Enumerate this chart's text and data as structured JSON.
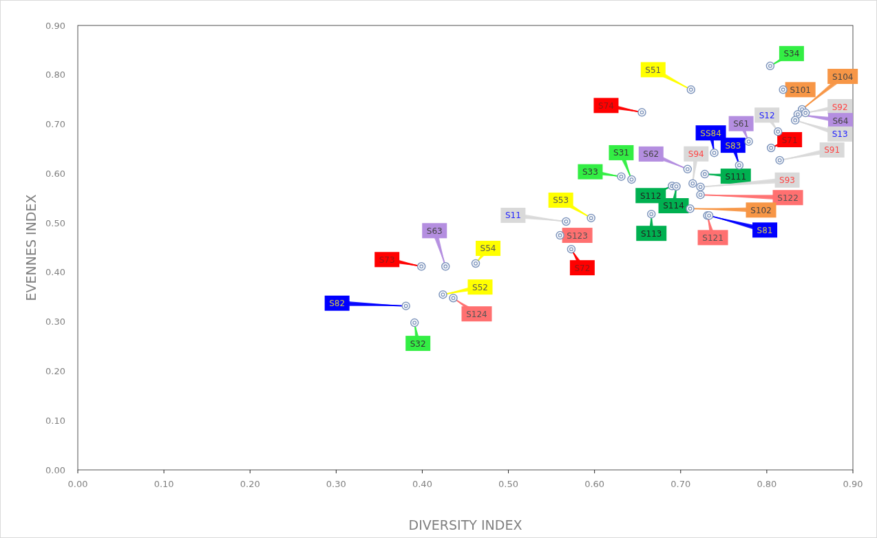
{
  "chart_data": {
    "type": "scatter",
    "xlabel": "DIVERSITY INDEX",
    "ylabel": "EVENNES INDEX",
    "marker": "circle",
    "grid": false,
    "xlim": [
      0,
      0.9
    ],
    "ylim": [
      0,
      0.9
    ],
    "xticks": [
      {
        "value": 0,
        "label": "0.00"
      },
      {
        "value": 0.1,
        "label": "0.10"
      },
      {
        "value": 0.2,
        "label": "0.20"
      },
      {
        "value": 0.3,
        "label": "0.30"
      },
      {
        "value": 0.4,
        "label": "0.40"
      },
      {
        "value": 0.5,
        "label": "0.50"
      },
      {
        "value": 0.6,
        "label": "0.60"
      },
      {
        "value": 0.7,
        "label": "0.70"
      },
      {
        "value": 0.8,
        "label": "0.80"
      },
      {
        "value": 0.9,
        "label": "0.90"
      }
    ],
    "yticks": [
      {
        "value": 0,
        "label": "0.00"
      },
      {
        "value": 0.1,
        "label": "0.10"
      },
      {
        "value": 0.2,
        "label": "0.20"
      },
      {
        "value": 0.3,
        "label": "0.30"
      },
      {
        "value": 0.4,
        "label": "0.40"
      },
      {
        "value": 0.5,
        "label": "0.50"
      },
      {
        "value": 0.6,
        "label": "0.60"
      },
      {
        "value": 0.7,
        "label": "0.70"
      },
      {
        "value": 0.8,
        "label": "0.80"
      },
      {
        "value": 0.9,
        "label": "0.90"
      }
    ],
    "series": [
      {
        "color": "#7f96bd",
        "x": [
          0.804,
          0.712,
          0.819,
          0.841,
          0.845,
          0.836,
          0.833,
          0.813,
          0.805,
          0.815,
          0.779,
          0.739,
          0.768,
          0.714,
          0.708,
          0.728,
          0.723,
          0.723,
          0.69,
          0.695,
          0.711,
          0.731,
          0.733,
          0.666,
          0.643,
          0.631,
          0.596,
          0.655,
          0.567,
          0.56,
          0.573,
          0.427,
          0.399,
          0.462,
          0.424,
          0.436,
          0.381,
          0.391
        ],
        "values": [
          0.818,
          0.77,
          0.77,
          0.73,
          0.723,
          0.72,
          0.708,
          0.685,
          0.652,
          0.627,
          0.665,
          0.642,
          0.617,
          0.58,
          0.609,
          0.599,
          0.573,
          0.557,
          0.575,
          0.574,
          0.529,
          0.515,
          0.515,
          0.518,
          0.588,
          0.594,
          0.51,
          0.724,
          0.503,
          0.475,
          0.447,
          0.412,
          0.412,
          0.418,
          0.355,
          0.348,
          0.332,
          0.298
        ]
      }
    ],
    "annotations": [
      {
        "text": "S34",
        "x": 0.804,
        "y": 0.818
      },
      {
        "text": "S51",
        "x": 0.712,
        "y": 0.77
      },
      {
        "text": "S101",
        "x": 0.819,
        "y": 0.77
      },
      {
        "text": "S104",
        "x": 0.841,
        "y": 0.73
      },
      {
        "text": "S92",
        "x": 0.845,
        "y": 0.723
      },
      {
        "text": "S64",
        "x": 0.836,
        "y": 0.72
      },
      {
        "text": "S13",
        "x": 0.833,
        "y": 0.708
      },
      {
        "text": "S12",
        "x": 0.813,
        "y": 0.685
      },
      {
        "text": "S71",
        "x": 0.805,
        "y": 0.652
      },
      {
        "text": "S91",
        "x": 0.815,
        "y": 0.627
      },
      {
        "text": "S61",
        "x": 0.779,
        "y": 0.665
      },
      {
        "text": "SS84",
        "x": 0.739,
        "y": 0.642
      },
      {
        "text": "S83",
        "x": 0.768,
        "y": 0.617
      },
      {
        "text": "S94",
        "x": 0.714,
        "y": 0.58
      },
      {
        "text": "S62",
        "x": 0.708,
        "y": 0.609
      },
      {
        "text": "S111",
        "x": 0.728,
        "y": 0.599
      },
      {
        "text": "S93",
        "x": 0.723,
        "y": 0.573
      },
      {
        "text": "S122",
        "x": 0.723,
        "y": 0.557
      },
      {
        "text": "S112",
        "x": 0.69,
        "y": 0.575
      },
      {
        "text": "S114",
        "x": 0.695,
        "y": 0.574
      },
      {
        "text": "S102",
        "x": 0.711,
        "y": 0.529
      },
      {
        "text": "S121",
        "x": 0.731,
        "y": 0.515
      },
      {
        "text": "S81",
        "x": 0.733,
        "y": 0.515
      },
      {
        "text": "S113",
        "x": 0.666,
        "y": 0.518
      },
      {
        "text": "S31",
        "x": 0.643,
        "y": 0.588
      },
      {
        "text": "S33",
        "x": 0.631,
        "y": 0.594
      },
      {
        "text": "S53",
        "x": 0.596,
        "y": 0.51
      },
      {
        "text": "S74",
        "x": 0.655,
        "y": 0.724
      },
      {
        "text": "S11",
        "x": 0.567,
        "y": 0.503
      },
      {
        "text": "S123",
        "x": 0.56,
        "y": 0.475
      },
      {
        "text": "S72",
        "x": 0.573,
        "y": 0.447
      },
      {
        "text": "S63",
        "x": 0.427,
        "y": 0.412
      },
      {
        "text": "S73",
        "x": 0.399,
        "y": 0.412
      },
      {
        "text": "S54",
        "x": 0.462,
        "y": 0.418
      },
      {
        "text": "S52",
        "x": 0.424,
        "y": 0.355
      },
      {
        "text": "S124",
        "x": 0.436,
        "y": 0.348
      },
      {
        "text": "S82",
        "x": 0.381,
        "y": 0.332
      },
      {
        "text": "S32",
        "x": 0.391,
        "y": 0.298
      }
    ]
  }
}
